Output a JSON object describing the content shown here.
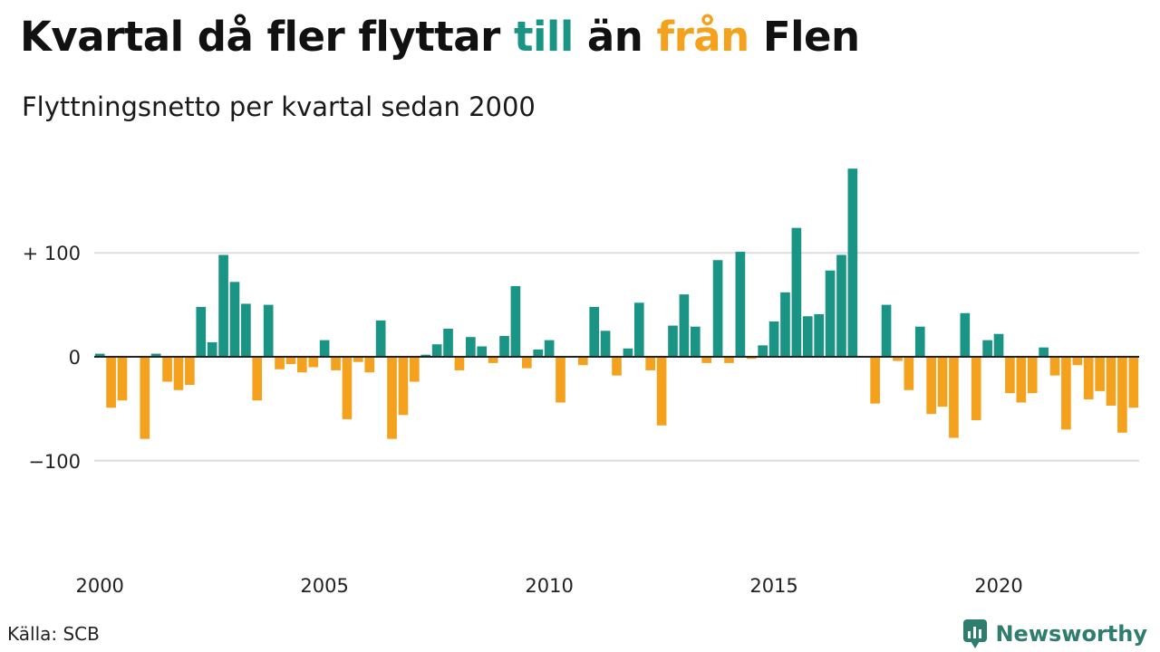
{
  "title": {
    "part1": "Kvartal då fler flyttar ",
    "positive_word": "till",
    "part2": " än ",
    "negative_word": "från",
    "part3": " Flen"
  },
  "subtitle": "Flyttningsnetto per kvartal sedan 2000",
  "source": "Källa: SCB",
  "brand": {
    "name": "Newsworthy",
    "icon": "newsworthy-logo-icon"
  },
  "colors": {
    "positive": "#1a9485",
    "negative": "#f4a21d",
    "grid": "#dddddd",
    "zero_line": "#222222",
    "brand": "#2e7d6f"
  },
  "chart_data": {
    "type": "bar",
    "start_year": 2000,
    "start_quarter": 1,
    "ylim": [
      -160,
      185
    ],
    "y_ticks": [
      {
        "value": 100,
        "label": "+ 100"
      },
      {
        "value": 0,
        "label": "0"
      },
      {
        "value": -100,
        "label": "−100"
      }
    ],
    "x_ticks": [
      "2000",
      "2005",
      "2010",
      "2015",
      "2020"
    ],
    "grid": true,
    "values": [
      3,
      -49,
      -42,
      0,
      -79,
      3,
      -24,
      -32,
      -27,
      48,
      14,
      98,
      72,
      51,
      -42,
      50,
      -12,
      -7,
      -15,
      -10,
      16,
      -13,
      -60,
      -5,
      -15,
      35,
      -79,
      -56,
      -24,
      2,
      12,
      27,
      -13,
      19,
      10,
      -6,
      20,
      68,
      -11,
      7,
      16,
      -44,
      0,
      -8,
      48,
      25,
      -18,
      8,
      52,
      -13,
      -66,
      30,
      60,
      29,
      -6,
      93,
      -6,
      101,
      -2,
      11,
      34,
      62,
      124,
      39,
      41,
      83,
      98,
      181,
      0,
      -45,
      50,
      -4,
      -32,
      29,
      -55,
      -48,
      -78,
      42,
      -61,
      16,
      22,
      -35,
      -44,
      -35,
      9,
      -18,
      -70,
      -8,
      -41,
      -33,
      -47,
      -73,
      -49
    ]
  }
}
